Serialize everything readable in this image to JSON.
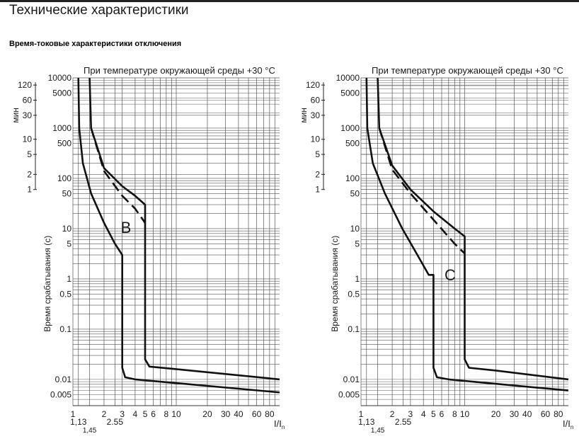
{
  "page": {
    "title": "Технические характеристики",
    "subtitle": "Время-токовые характеристики отключения",
    "top_bar_color": "#222222"
  },
  "chart_data": [
    {
      "type": "line",
      "id": "B",
      "header": "При температуре окружающей среды +30 °C",
      "ylabel": "Время срабатывания (с)",
      "ylabel_min": "мин",
      "xlabel": "I/In",
      "xscale": "log",
      "yscale": "log",
      "xlim": [
        1,
        100
      ],
      "ylim": [
        0.003,
        10000
      ],
      "grid": true,
      "y_ticks_seconds": [
        {
          "v": 10000,
          "label": "10000"
        },
        {
          "v": 5000,
          "label": "5000"
        },
        {
          "v": 1000,
          "label": "1000"
        },
        {
          "v": 500,
          "label": "500"
        },
        {
          "v": 100,
          "label": "100"
        },
        {
          "v": 50,
          "label": "50"
        },
        {
          "v": 10,
          "label": "10"
        },
        {
          "v": 5,
          "label": "5"
        },
        {
          "v": 1,
          "label": "1"
        },
        {
          "v": 0.5,
          "label": "0.5"
        },
        {
          "v": 0.1,
          "label": "0.1"
        },
        {
          "v": 0.01,
          "label": "0.01"
        },
        {
          "v": 0.005,
          "label": "0.005"
        }
      ],
      "y_ticks_minutes": [
        {
          "v": 7200,
          "label": "120"
        },
        {
          "v": 3600,
          "label": "60"
        },
        {
          "v": 1800,
          "label": "30"
        },
        {
          "v": 600,
          "label": "10"
        },
        {
          "v": 300,
          "label": "5"
        },
        {
          "v": 120,
          "label": "2"
        },
        {
          "v": 60,
          "label": "1"
        }
      ],
      "x_ticks": [
        {
          "v": 1,
          "label": "1",
          "row": 0
        },
        {
          "v": 1.13,
          "label": "1,13",
          "row": 1
        },
        {
          "v": 1.45,
          "label": "1,45",
          "row": 2
        },
        {
          "v": 2,
          "label": "2",
          "row": 0
        },
        {
          "v": 2.55,
          "label": "2.55",
          "row": 1
        },
        {
          "v": 3,
          "label": "3",
          "row": 0
        },
        {
          "v": 4,
          "label": "4",
          "row": 0
        },
        {
          "v": 5,
          "label": "5",
          "row": 0
        },
        {
          "v": 6,
          "label": "6",
          "row": 0
        },
        {
          "v": 8,
          "label": "8",
          "row": 0
        },
        {
          "v": 10,
          "label": "10",
          "row": 0
        },
        {
          "v": 20,
          "label": "20",
          "row": 0
        },
        {
          "v": 30,
          "label": "30",
          "row": 0
        },
        {
          "v": 40,
          "label": "40",
          "row": 0
        },
        {
          "v": 60,
          "label": "60",
          "row": 0
        },
        {
          "v": 80,
          "label": "80",
          "row": 0
        }
      ],
      "curve_label": "B",
      "series": [
        {
          "style": "solid",
          "points": [
            [
              1.13,
              10000
            ],
            [
              1.15,
              1000
            ],
            [
              1.25,
              200
            ],
            [
              1.5,
              50
            ],
            [
              2,
              13
            ],
            [
              2.55,
              5
            ],
            [
              3,
              3
            ],
            [
              3,
              0.017
            ],
            [
              3.2,
              0.011
            ],
            [
              4,
              0.01
            ],
            [
              100,
              0.0055
            ]
          ]
        },
        {
          "style": "solid",
          "points": [
            [
              1.45,
              10000
            ],
            [
              1.5,
              1000
            ],
            [
              2,
              160
            ],
            [
              3,
              70
            ],
            [
              4,
              45
            ],
            [
              5,
              30
            ],
            [
              5,
              0.025
            ],
            [
              5.5,
              0.018
            ],
            [
              10,
              0.016
            ],
            [
              100,
              0.01
            ]
          ]
        },
        {
          "style": "dashed",
          "points": [
            [
              1.5,
              1000
            ],
            [
              2,
              140
            ],
            [
              3,
              45
            ],
            [
              4,
              25
            ],
            [
              5,
              13
            ]
          ]
        }
      ]
    },
    {
      "type": "line",
      "id": "C",
      "header": "При температуре окружающей среды +30 °C",
      "ylabel": "Время срабатывания (с)",
      "ylabel_min": "мин",
      "xlabel": "I/In",
      "xscale": "log",
      "yscale": "log",
      "xlim": [
        1,
        100
      ],
      "ylim": [
        0.003,
        10000
      ],
      "grid": true,
      "y_ticks_seconds": [
        {
          "v": 10000,
          "label": "10000"
        },
        {
          "v": 5000,
          "label": "5000"
        },
        {
          "v": 1000,
          "label": "1000"
        },
        {
          "v": 500,
          "label": "500"
        },
        {
          "v": 100,
          "label": "100"
        },
        {
          "v": 50,
          "label": "50"
        },
        {
          "v": 10,
          "label": "10"
        },
        {
          "v": 5,
          "label": "5"
        },
        {
          "v": 1,
          "label": "1"
        },
        {
          "v": 0.5,
          "label": "0.5"
        },
        {
          "v": 0.1,
          "label": "0.1"
        },
        {
          "v": 0.01,
          "label": "0.01"
        },
        {
          "v": 0.005,
          "label": "0.005"
        }
      ],
      "y_ticks_minutes": [
        {
          "v": 7200,
          "label": "120"
        },
        {
          "v": 3600,
          "label": "60"
        },
        {
          "v": 1800,
          "label": "30"
        },
        {
          "v": 600,
          "label": "10"
        },
        {
          "v": 300,
          "label": "5"
        },
        {
          "v": 120,
          "label": "2"
        },
        {
          "v": 60,
          "label": "1"
        }
      ],
      "x_ticks": [
        {
          "v": 1,
          "label": "1",
          "row": 0
        },
        {
          "v": 1.13,
          "label": "1,13",
          "row": 1
        },
        {
          "v": 1.45,
          "label": "1,45",
          "row": 2
        },
        {
          "v": 2,
          "label": "2",
          "row": 0
        },
        {
          "v": 2.55,
          "label": "2.55",
          "row": 1
        },
        {
          "v": 3,
          "label": "3",
          "row": 0
        },
        {
          "v": 4,
          "label": "4",
          "row": 0
        },
        {
          "v": 5,
          "label": "5",
          "row": 0
        },
        {
          "v": 6,
          "label": "6",
          "row": 0
        },
        {
          "v": 8,
          "label": "8",
          "row": 0
        },
        {
          "v": 10,
          "label": "10",
          "row": 0
        },
        {
          "v": 20,
          "label": "20",
          "row": 0
        },
        {
          "v": 30,
          "label": "30",
          "row": 0
        },
        {
          "v": 40,
          "label": "40",
          "row": 0
        },
        {
          "v": 60,
          "label": "60",
          "row": 0
        },
        {
          "v": 80,
          "label": "80",
          "row": 0
        }
      ],
      "curve_label": "C",
      "series": [
        {
          "style": "solid",
          "points": [
            [
              1.13,
              10000
            ],
            [
              1.15,
              1000
            ],
            [
              1.3,
              200
            ],
            [
              1.7,
              50
            ],
            [
              2.5,
              10
            ],
            [
              3.5,
              3
            ],
            [
              4.5,
              1.2
            ],
            [
              5,
              1.2
            ],
            [
              5,
              0.017
            ],
            [
              5.4,
              0.011
            ],
            [
              7,
              0.01
            ],
            [
              100,
              0.006
            ]
          ]
        },
        {
          "style": "solid",
          "points": [
            [
              1.45,
              10000
            ],
            [
              1.5,
              1000
            ],
            [
              2,
              180
            ],
            [
              3,
              60
            ],
            [
              5,
              22
            ],
            [
              8,
              10
            ],
            [
              10,
              7
            ],
            [
              10,
              0.025
            ],
            [
              11,
              0.017
            ],
            [
              20,
              0.015
            ],
            [
              100,
              0.01
            ]
          ]
        },
        {
          "style": "dashed",
          "points": [
            [
              1.5,
              1000
            ],
            [
              2,
              150
            ],
            [
              3,
              50
            ],
            [
              5,
              15
            ],
            [
              8,
              5
            ],
            [
              10,
              3.2
            ]
          ]
        }
      ]
    }
  ]
}
